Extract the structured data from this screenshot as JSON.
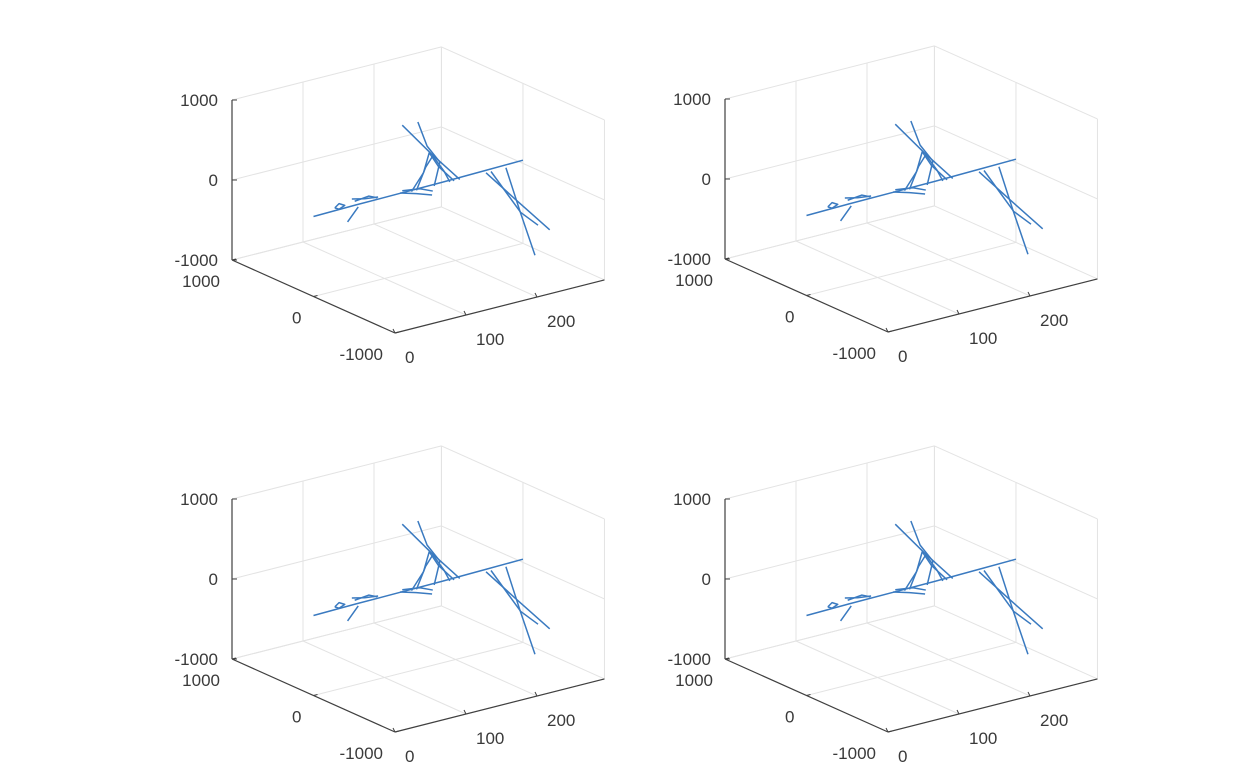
{
  "chart_data": {
    "type": "line3d",
    "layout": "2x2 subplots, identical content",
    "line_color": "#3a7ac0",
    "grid": true,
    "xlim": [
      0,
      295
    ],
    "ylim": [
      -1000,
      1000
    ],
    "zlim": [
      -1000,
      1000
    ],
    "xticks": [
      "0",
      "100",
      "200"
    ],
    "xtick_values": [
      0,
      100,
      200
    ],
    "yticks": [
      "1000",
      "0",
      "-1000"
    ],
    "ytick_values": [
      1000,
      0,
      -1000
    ],
    "zticks": [
      "1000",
      "0",
      "-1000"
    ],
    "ztick_values": [
      1000,
      0,
      -1000
    ],
    "lines": [
      [
        [
          0,
          0,
          0
        ],
        [
          60,
          0,
          10
        ],
        [
          120,
          0,
          15
        ],
        [
          180,
          0,
          20
        ],
        [
          240,
          0,
          30
        ],
        [
          295,
          0,
          40
        ]
      ],
      [
        [
          125,
          0,
          860
        ],
        [
          165,
          0,
          420
        ],
        [
          206,
          0,
          0
        ]
      ],
      [
        [
          147,
          0,
          850
        ],
        [
          160,
          0,
          520
        ],
        [
          178,
          0,
          280
        ],
        [
          170,
          0,
          0
        ]
      ],
      [
        [
          138,
          0,
          0
        ],
        [
          155,
          0,
          200
        ],
        [
          163,
          0,
          430
        ],
        [
          176,
          0,
          230
        ],
        [
          198,
          0,
          0
        ]
      ],
      [
        [
          145,
          0,
          0
        ],
        [
          158,
          0,
          260
        ],
        [
          168,
          0,
          380
        ],
        [
          184,
          0,
          150
        ],
        [
          192,
          0,
          0
        ]
      ],
      [
        [
          243,
          0,
          0
        ],
        [
          255,
          -250,
          -240
        ],
        [
          270,
          -546,
          -525
        ]
      ],
      [
        [
          271,
          0,
          0
        ],
        [
          268,
          -200,
          -450
        ],
        [
          266,
          -400,
          -900
        ]
      ],
      [
        [
          250,
          0,
          0
        ],
        [
          262,
          -260,
          -420
        ],
        [
          268,
          -420,
          -520
        ]
      ],
      [
        [
          48,
          0,
          -176
        ],
        [
          63,
          0,
          -22
        ]
      ],
      [
        [
          54,
          0,
          97
        ],
        [
          72,
          0,
          60
        ],
        [
          91,
          0,
          39
        ]
      ],
      [
        [
          58,
          0,
          60
        ],
        [
          78,
          0,
          80
        ],
        [
          90,
          0,
          30
        ]
      ],
      [
        [
          122,
          0,
          19
        ],
        [
          145,
          0,
          -40
        ],
        [
          167,
          0,
          -107
        ]
      ],
      [
        [
          125,
          0,
          40
        ],
        [
          150,
          0,
          10
        ],
        [
          168,
          0,
          -60
        ]
      ],
      [
        [
          30,
          0,
          40
        ],
        [
          36,
          0,
          80
        ],
        [
          44,
          0,
          40
        ],
        [
          36,
          0,
          10
        ],
        [
          30,
          0,
          40
        ]
      ]
    ]
  }
}
